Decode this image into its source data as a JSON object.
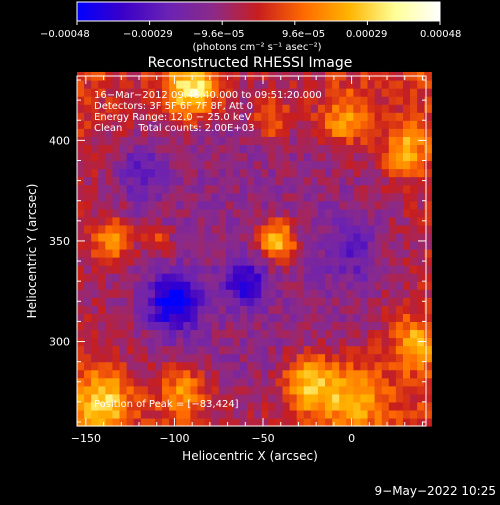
{
  "colorbar": {
    "ticks": [
      "−0.00048",
      "−0.00029",
      "−9.6e−05",
      "9.6e−05",
      "0.00029",
      "0.00048"
    ],
    "units": "(photons cm⁻² s⁻¹ asec⁻²)",
    "colors": [
      "#0000ff",
      "#3a00c8",
      "#6a22b4",
      "#8c2a88",
      "#c81e1e",
      "#ff6a00",
      "#ffb400",
      "#ffff96",
      "#ffffff"
    ]
  },
  "chart_data": {
    "type": "heatmap",
    "title": "Reconstructed RHESSI Image",
    "xlabel": "Heliocentric X (arcsec)",
    "ylabel": "Heliocentric Y (arcsec)",
    "xlim": [
      -155,
      42
    ],
    "ylim": [
      258,
      432
    ],
    "x_ticks": [
      -150,
      -100,
      -50,
      0
    ],
    "y_ticks": [
      300,
      350,
      400
    ],
    "value_range": [
      -0.00048,
      0.00048
    ],
    "annotations": [
      "16−Mar−2012 09:48:40.000 to 09:51:20.000",
      "Detectors: 3F 5F 6F 7F 8F, Att 0",
      "Energy Range: 12.0 − 25.0 keV",
      "Clean     Total counts: 2.00E+03"
    ],
    "peak_label": "Position of Peak = [−83,424]",
    "features": [
      {
        "x": -42,
        "y": 350,
        "r": 10,
        "v": 0.0004
      },
      {
        "x": -90,
        "y": 425,
        "r": 14,
        "v": 0.00042
      },
      {
        "x": -25,
        "y": 280,
        "r": 14,
        "v": 0.00034
      },
      {
        "x": 0,
        "y": 272,
        "r": 18,
        "v": 0.00028
      },
      {
        "x": -135,
        "y": 350,
        "r": 12,
        "v": 0.00026
      },
      {
        "x": -140,
        "y": 270,
        "r": 16,
        "v": 0.0003
      },
      {
        "x": -95,
        "y": 275,
        "r": 14,
        "v": 0.00024
      },
      {
        "x": -5,
        "y": 410,
        "r": 14,
        "v": 0.00024
      },
      {
        "x": 30,
        "y": 395,
        "r": 12,
        "v": 0.00026
      },
      {
        "x": -45,
        "y": 410,
        "r": 10,
        "v": 0.00022
      },
      {
        "x": 35,
        "y": 300,
        "r": 14,
        "v": 0.00024
      },
      {
        "x": -110,
        "y": 350,
        "r": 8,
        "v": 0.00016
      },
      {
        "x": -100,
        "y": 320,
        "r": 14,
        "v": -0.0004
      },
      {
        "x": -60,
        "y": 330,
        "r": 12,
        "v": -0.0003
      },
      {
        "x": -120,
        "y": 385,
        "r": 14,
        "v": -0.00018
      },
      {
        "x": 0,
        "y": 345,
        "r": 16,
        "v": -0.00014
      }
    ]
  },
  "footer": {
    "date": "9−May−2022 10:25"
  }
}
